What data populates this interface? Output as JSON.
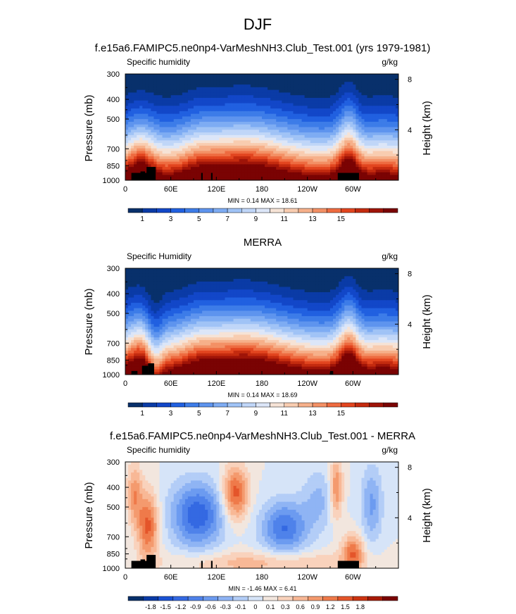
{
  "figure": {
    "title": "DJF",
    "colors": {
      "cold_scale": [
        "#08306b",
        "#0a3ba6",
        "#1247c8",
        "#2160e0",
        "#3d7ce8",
        "#5e94ee",
        "#7eacf3",
        "#a0c3f6",
        "#c0d6f8",
        "#dce6f8",
        "#f6e3d6",
        "#f8ccb0",
        "#f6b08a",
        "#f39065",
        "#ee6b40",
        "#e2451f",
        "#c42b0f",
        "#9f1408",
        "#7a0303"
      ],
      "diff_scale": [
        "#08306b",
        "#0a3ba6",
        "#1a52d4",
        "#3469e2",
        "#4f82ea",
        "#6c9bf0",
        "#8fb4f4",
        "#b3cdf7",
        "#d6e4f8",
        "#f2e6de",
        "#f9d2bc",
        "#f8b896",
        "#f49a6e",
        "#ef7a4a",
        "#e4552a",
        "#cc3411",
        "#a81a06",
        "#7a0303"
      ],
      "land": "#000000"
    },
    "panels": [
      {
        "title": "f.e15a6.FAMIPC5.ne0np4-VarMeshNH3.Club_Test.001 (yrs 1979-1981)",
        "left_label": "Specific humidity",
        "right_label": "g/kg",
        "ylabel": "Pressure (mb)",
        "y2label": "Height (km)",
        "stats": "MIN =  0.14  MAX =  18.61",
        "colorbar_labels": [
          "1",
          "3",
          "5",
          "7",
          "9",
          "11",
          "13",
          "15"
        ],
        "colorbar_levels": 19
      },
      {
        "title": "MERRA",
        "left_label": "Specific Humidity",
        "right_label": "g/kg",
        "ylabel": "Pressure (mb)",
        "y2label": "Height (km)",
        "stats": "MIN =  0.14  MAX =  18.69",
        "colorbar_labels": [
          "1",
          "3",
          "5",
          "7",
          "9",
          "11",
          "13",
          "15"
        ],
        "colorbar_levels": 19
      },
      {
        "title": "f.e15a6.FAMIPC5.ne0np4-VarMeshNH3.Club_Test.001 - MERRA",
        "left_label": "Specific humidity",
        "right_label": "g/kg",
        "ylabel": "Pressure (mb)",
        "y2label": "Height (km)",
        "stats": "MIN = -1.46  MAX =  6.41",
        "colorbar_labels": [
          "-1.8",
          "-1.5",
          "-1.2",
          "-0.9",
          "-0.6",
          "-0.3",
          "-0.1",
          "0",
          "0.1",
          "0.3",
          "0.6",
          "0.9",
          "1.2",
          "1.5",
          "1.8"
        ],
        "colorbar_levels": 18
      }
    ]
  },
  "chart_data": [
    {
      "type": "heatmap",
      "title": "f.e15a6.FAMIPC5.ne0np4-VarMeshNH3.Club_Test.001 (yrs 1979-1981)",
      "variable": "Specific humidity",
      "units": "g/kg",
      "ylabel": "Pressure (mb)",
      "y2label": "Height (km)",
      "x_ticks": [
        "0",
        "60E",
        "120E",
        "180",
        "120W",
        "60W"
      ],
      "x_tick_values": [
        0,
        60,
        120,
        180,
        240,
        300
      ],
      "xlim": [
        0,
        360
      ],
      "y_ticks": [
        300,
        400,
        500,
        700,
        850,
        1000
      ],
      "ylim": [
        1000,
        300
      ],
      "y2_ticks": [
        8,
        4
      ],
      "log_y": true,
      "min": 0.14,
      "max": 18.61
    },
    {
      "type": "heatmap",
      "title": "MERRA",
      "variable": "Specific Humidity",
      "units": "g/kg",
      "ylabel": "Pressure (mb)",
      "y2label": "Height (km)",
      "x_ticks": [
        "0",
        "60E",
        "120E",
        "180",
        "120W",
        "60W"
      ],
      "x_tick_values": [
        0,
        60,
        120,
        180,
        240,
        300
      ],
      "xlim": [
        0,
        360
      ],
      "y_ticks": [
        300,
        400,
        500,
        700,
        850,
        1000
      ],
      "ylim": [
        1000,
        300
      ],
      "y2_ticks": [
        8,
        4
      ],
      "log_y": true,
      "min": 0.14,
      "max": 18.69
    },
    {
      "type": "heatmap",
      "title": "f.e15a6.FAMIPC5.ne0np4-VarMeshNH3.Club_Test.001 - MERRA",
      "variable": "Specific humidity",
      "units": "g/kg",
      "ylabel": "Pressure (mb)",
      "y2label": "Height (km)",
      "x_ticks": [
        "0",
        "60E",
        "120E",
        "180",
        "120W",
        "60W"
      ],
      "x_tick_values": [
        0,
        60,
        120,
        180,
        240,
        300
      ],
      "xlim": [
        0,
        360
      ],
      "y_ticks": [
        300,
        400,
        500,
        700,
        850,
        1000
      ],
      "ylim": [
        1000,
        300
      ],
      "y2_ticks": [
        8,
        4
      ],
      "log_y": true,
      "min": -1.46,
      "max": 6.41
    }
  ]
}
